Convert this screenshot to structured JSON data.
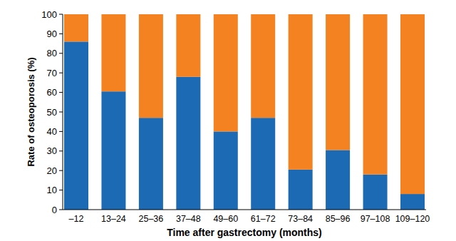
{
  "chart_data": {
    "type": "bar",
    "stacked": true,
    "x_label": "Time after gastrectomy (months)",
    "y_label": "Rate of osteoporosis (%)",
    "categories": [
      "–12",
      "13–24",
      "25–36",
      "37–48",
      "49–60",
      "61–72",
      "73–84",
      "85–96",
      "97–108",
      "109–120"
    ],
    "series": [
      {
        "color": "#1c6ab4",
        "values": [
          86,
          60.5,
          47,
          68,
          40,
          47,
          20.5,
          30.5,
          18,
          8
        ]
      },
      {
        "color": "#f58220",
        "values": [
          14,
          39.5,
          53,
          32,
          60,
          53,
          79.5,
          69.5,
          82,
          92
        ]
      }
    ],
    "ylim": [
      0,
      100
    ],
    "yticks": [
      0,
      10,
      20,
      30,
      40,
      50,
      60,
      70,
      80,
      90,
      100
    ],
    "grid": false
  }
}
